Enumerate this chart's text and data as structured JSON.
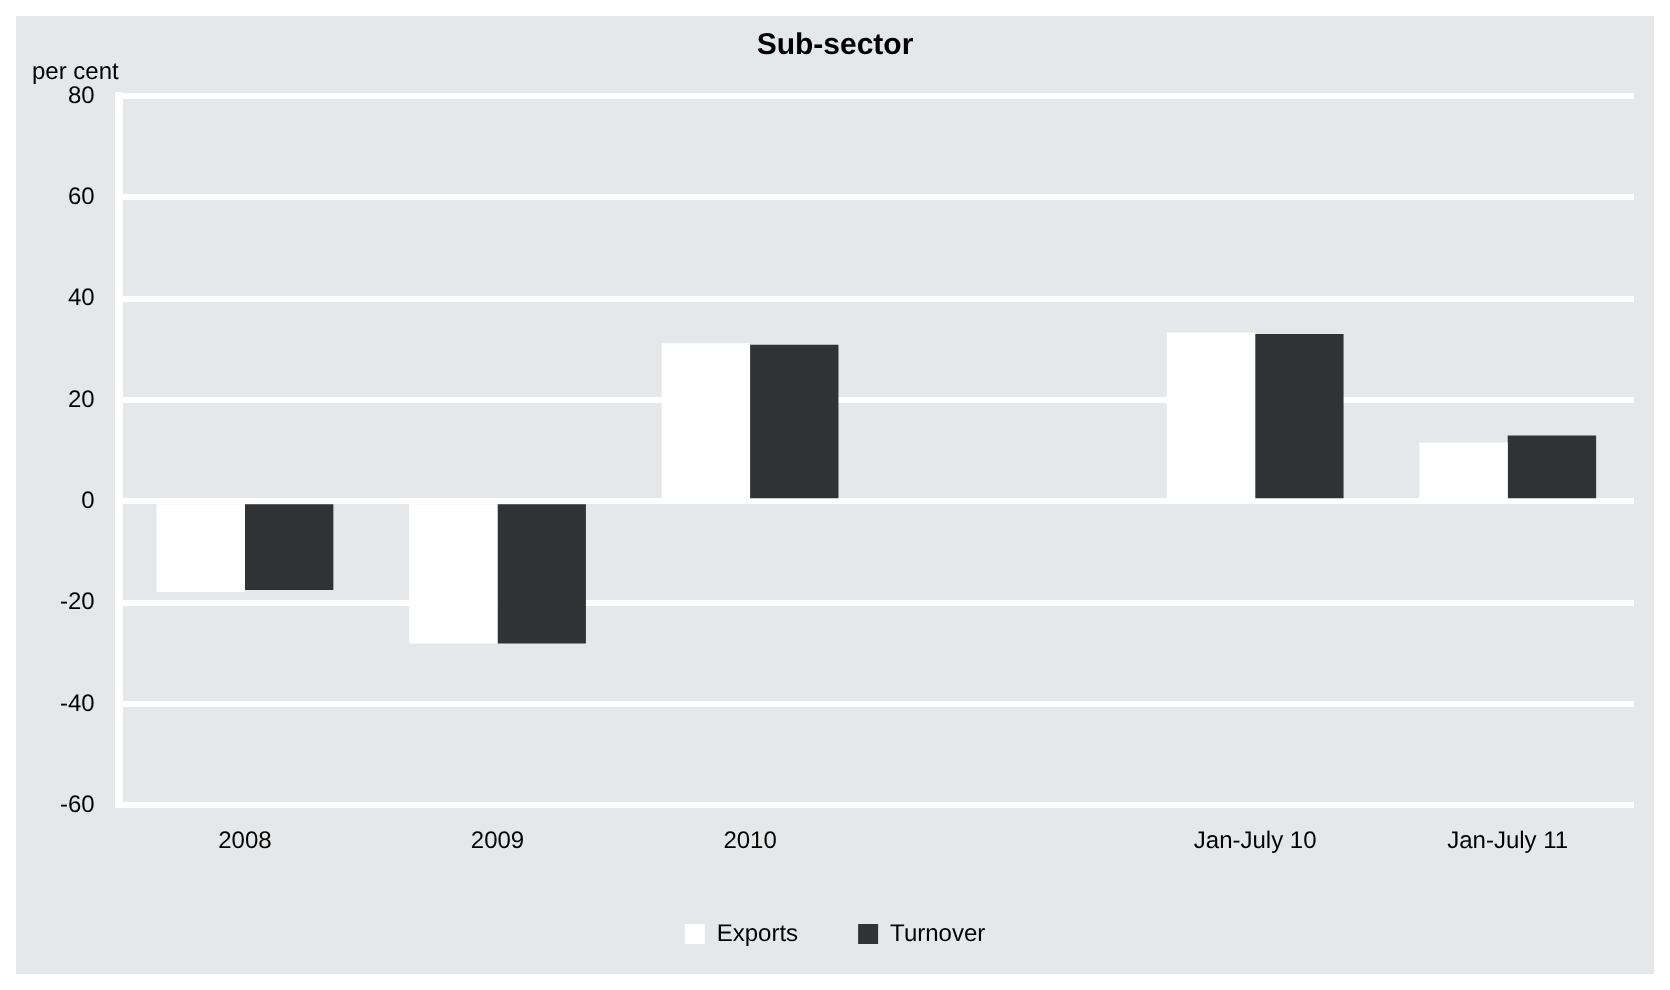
{
  "chart_data": {
    "type": "bar",
    "title": "Sub-sector",
    "ylabel": "per cent",
    "categories": [
      "2008",
      "2009",
      "2010",
      null,
      "Jan-July 10",
      "Jan-July 11"
    ],
    "series": [
      {
        "name": "Exports",
        "color": "#ffffff",
        "values": [
          -17.9,
          -28.1,
          31.2,
          null,
          33.3,
          11.6
        ]
      },
      {
        "name": "Turnover",
        "color": "#313234",
        "values": [
          -17.5,
          -28.1,
          30.9,
          null,
          33.0,
          13.0
        ]
      }
    ],
    "ylim": [
      -60,
      80
    ],
    "yticks": [
      -60,
      -40,
      -20,
      0,
      20,
      40,
      60,
      80
    ],
    "grid": "y",
    "legend": "bottom"
  }
}
